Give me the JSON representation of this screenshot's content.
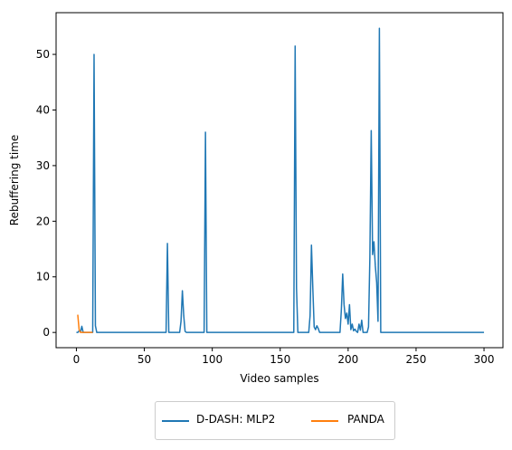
{
  "chart_data": {
    "type": "line",
    "title": "",
    "xlabel": "Video samples",
    "ylabel": "Rebuffering time",
    "xlim": [
      -14.95,
      313.95
    ],
    "ylim": [
      -2.74,
      57.5
    ],
    "xticks": [
      0,
      50,
      100,
      150,
      200,
      250,
      300
    ],
    "yticks": [
      0,
      10,
      20,
      30,
      40,
      50
    ],
    "grid": false,
    "legend_position": "below-center",
    "series": [
      {
        "name": "D-DASH: MLP2",
        "color": "#1f77b4",
        "points": [
          [
            0,
            0
          ],
          [
            1,
            0
          ],
          [
            2,
            0.3
          ],
          [
            3,
            0.1
          ],
          [
            4,
            1.1
          ],
          [
            5,
            0
          ],
          [
            6,
            0
          ],
          [
            12,
            0
          ],
          [
            13,
            50
          ],
          [
            14,
            1.2
          ],
          [
            15,
            0
          ],
          [
            66,
            0
          ],
          [
            67,
            16
          ],
          [
            68,
            0
          ],
          [
            76,
            0
          ],
          [
            77,
            2
          ],
          [
            78,
            7.5
          ],
          [
            79,
            3
          ],
          [
            80,
            0.2
          ],
          [
            81,
            0
          ],
          [
            94,
            0
          ],
          [
            95,
            36
          ],
          [
            96,
            0
          ],
          [
            160,
            0
          ],
          [
            161,
            51.5
          ],
          [
            162,
            8
          ],
          [
            163,
            0
          ],
          [
            171,
            0
          ],
          [
            172,
            3
          ],
          [
            173,
            15.7
          ],
          [
            174,
            8
          ],
          [
            175,
            1
          ],
          [
            176,
            0.5
          ],
          [
            177,
            1.2
          ],
          [
            178,
            0.7
          ],
          [
            179,
            0
          ],
          [
            194,
            0
          ],
          [
            195,
            4
          ],
          [
            196,
            10.5
          ],
          [
            197,
            5
          ],
          [
            198,
            2.5
          ],
          [
            199,
            3.5
          ],
          [
            200,
            1.5
          ],
          [
            201,
            5
          ],
          [
            202,
            0.5
          ],
          [
            203,
            1.5
          ],
          [
            204,
            0.3
          ],
          [
            205,
            0.6
          ],
          [
            206,
            0.2
          ],
          [
            207,
            0
          ],
          [
            208,
            1.5
          ],
          [
            209,
            0.4
          ],
          [
            210,
            2.2
          ],
          [
            211,
            0
          ],
          [
            214,
            0
          ],
          [
            215,
            1
          ],
          [
            216,
            13.5
          ],
          [
            217,
            36.3
          ],
          [
            218,
            14
          ],
          [
            219,
            16.3
          ],
          [
            220,
            12
          ],
          [
            221,
            9
          ],
          [
            222,
            2
          ],
          [
            223,
            54.7
          ],
          [
            224,
            0
          ],
          [
            300,
            0
          ]
        ]
      },
      {
        "name": "PANDA",
        "color": "#ff7f0e",
        "points": [
          [
            1,
            3.2
          ],
          [
            2,
            0.5
          ],
          [
            3,
            0
          ],
          [
            12,
            0
          ]
        ]
      }
    ]
  }
}
